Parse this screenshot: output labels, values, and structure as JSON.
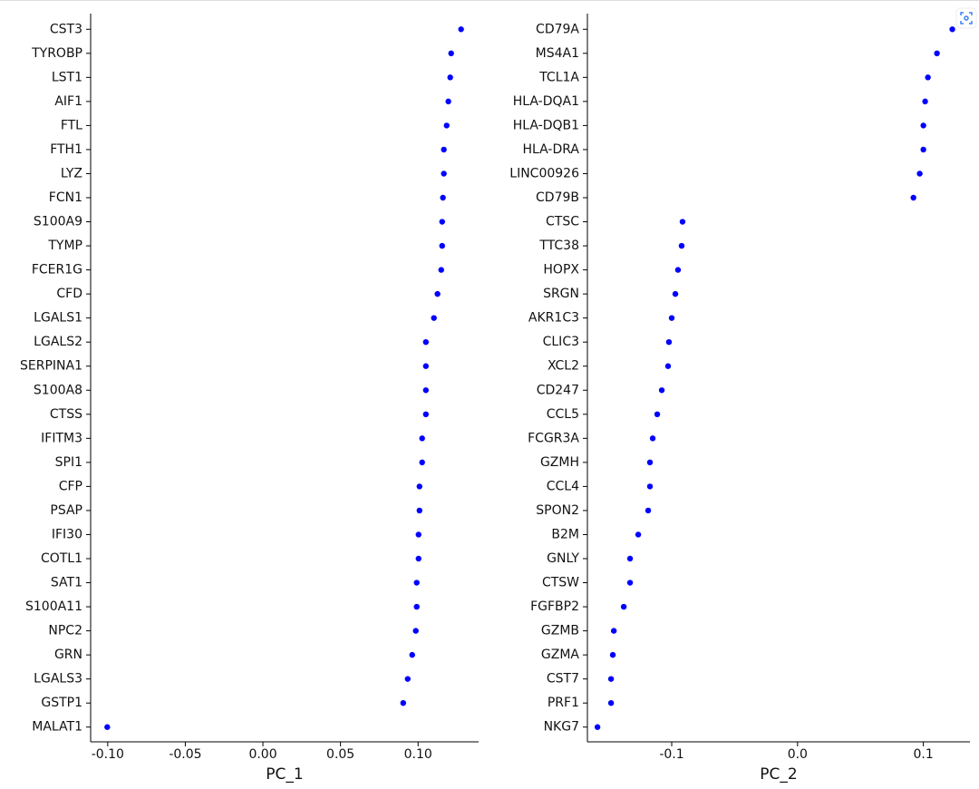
{
  "chart_data": [
    {
      "type": "dot",
      "xlabel": "PC_1",
      "color": "#0000ff",
      "categories": [
        "CST3",
        "TYROBP",
        "LST1",
        "AIF1",
        "FTL",
        "FTH1",
        "LYZ",
        "FCN1",
        "S100A9",
        "TYMP",
        "FCER1G",
        "CFD",
        "LGALS1",
        "LGALS2",
        "SERPINA1",
        "S100A8",
        "CTSS",
        "IFITM3",
        "SPI1",
        "CFP",
        "PSAP",
        "IFI30",
        "COTL1",
        "SAT1",
        "S100A11",
        "NPC2",
        "GRN",
        "LGALS3",
        "GSTP1",
        "MALAT1"
      ],
      "values": [
        0.1277,
        0.1213,
        0.1207,
        0.1195,
        0.1184,
        0.1166,
        0.1166,
        0.116,
        0.1155,
        0.1155,
        0.1149,
        0.1125,
        0.1102,
        0.105,
        0.105,
        0.105,
        0.105,
        0.1026,
        0.1026,
        0.1009,
        0.1009,
        0.1003,
        0.1003,
        0.0991,
        0.0991,
        0.0985,
        0.0962,
        0.0933,
        0.0904,
        -0.1003
      ],
      "xlim": [
        -0.111,
        0.139
      ],
      "xticks": [
        {
          "value": -0.1,
          "label": "-0.10"
        },
        {
          "value": -0.05,
          "label": "-0.05"
        },
        {
          "value": 0,
          "label": "0.00"
        },
        {
          "value": 0.05,
          "label": "0.05"
        },
        {
          "value": 0.1,
          "label": "0.10"
        }
      ]
    },
    {
      "type": "dot",
      "xlabel": "PC_2",
      "color": "#0000ff",
      "categories": [
        "CD79A",
        "MS4A1",
        "TCL1A",
        "HLA-DQA1",
        "HLA-DQB1",
        "HLA-DRA",
        "LINC00926",
        "CD79B",
        "CTSC",
        "TTC38",
        "HOPX",
        "SRGN",
        "AKR1C3",
        "CLIC3",
        "XCL2",
        "CD247",
        "CCL5",
        "FCGR3A",
        "GZMH",
        "CCL4",
        "SPON2",
        "B2M",
        "GNLY",
        "CTSW",
        "FGFBP2",
        "GZMB",
        "GZMA",
        "CST7",
        "PRF1",
        "NKG7"
      ],
      "values": [
        0.123,
        0.1108,
        0.1036,
        0.1014,
        0.1,
        0.1,
        0.0971,
        0.0921,
        -0.0914,
        -0.0921,
        -0.095,
        -0.0971,
        -0.1,
        -0.1022,
        -0.1029,
        -0.1079,
        -0.1115,
        -0.1151,
        -0.1173,
        -0.1173,
        -0.1187,
        -0.1266,
        -0.1331,
        -0.1331,
        -0.1381,
        -0.146,
        -0.1468,
        -0.1482,
        -0.1482,
        -0.159
      ],
      "xlim": [
        -0.167,
        0.137
      ],
      "xticks": [
        -0.1,
        {
          "value": 0,
          "label": "0.0"
        },
        0.1
      ]
    }
  ]
}
